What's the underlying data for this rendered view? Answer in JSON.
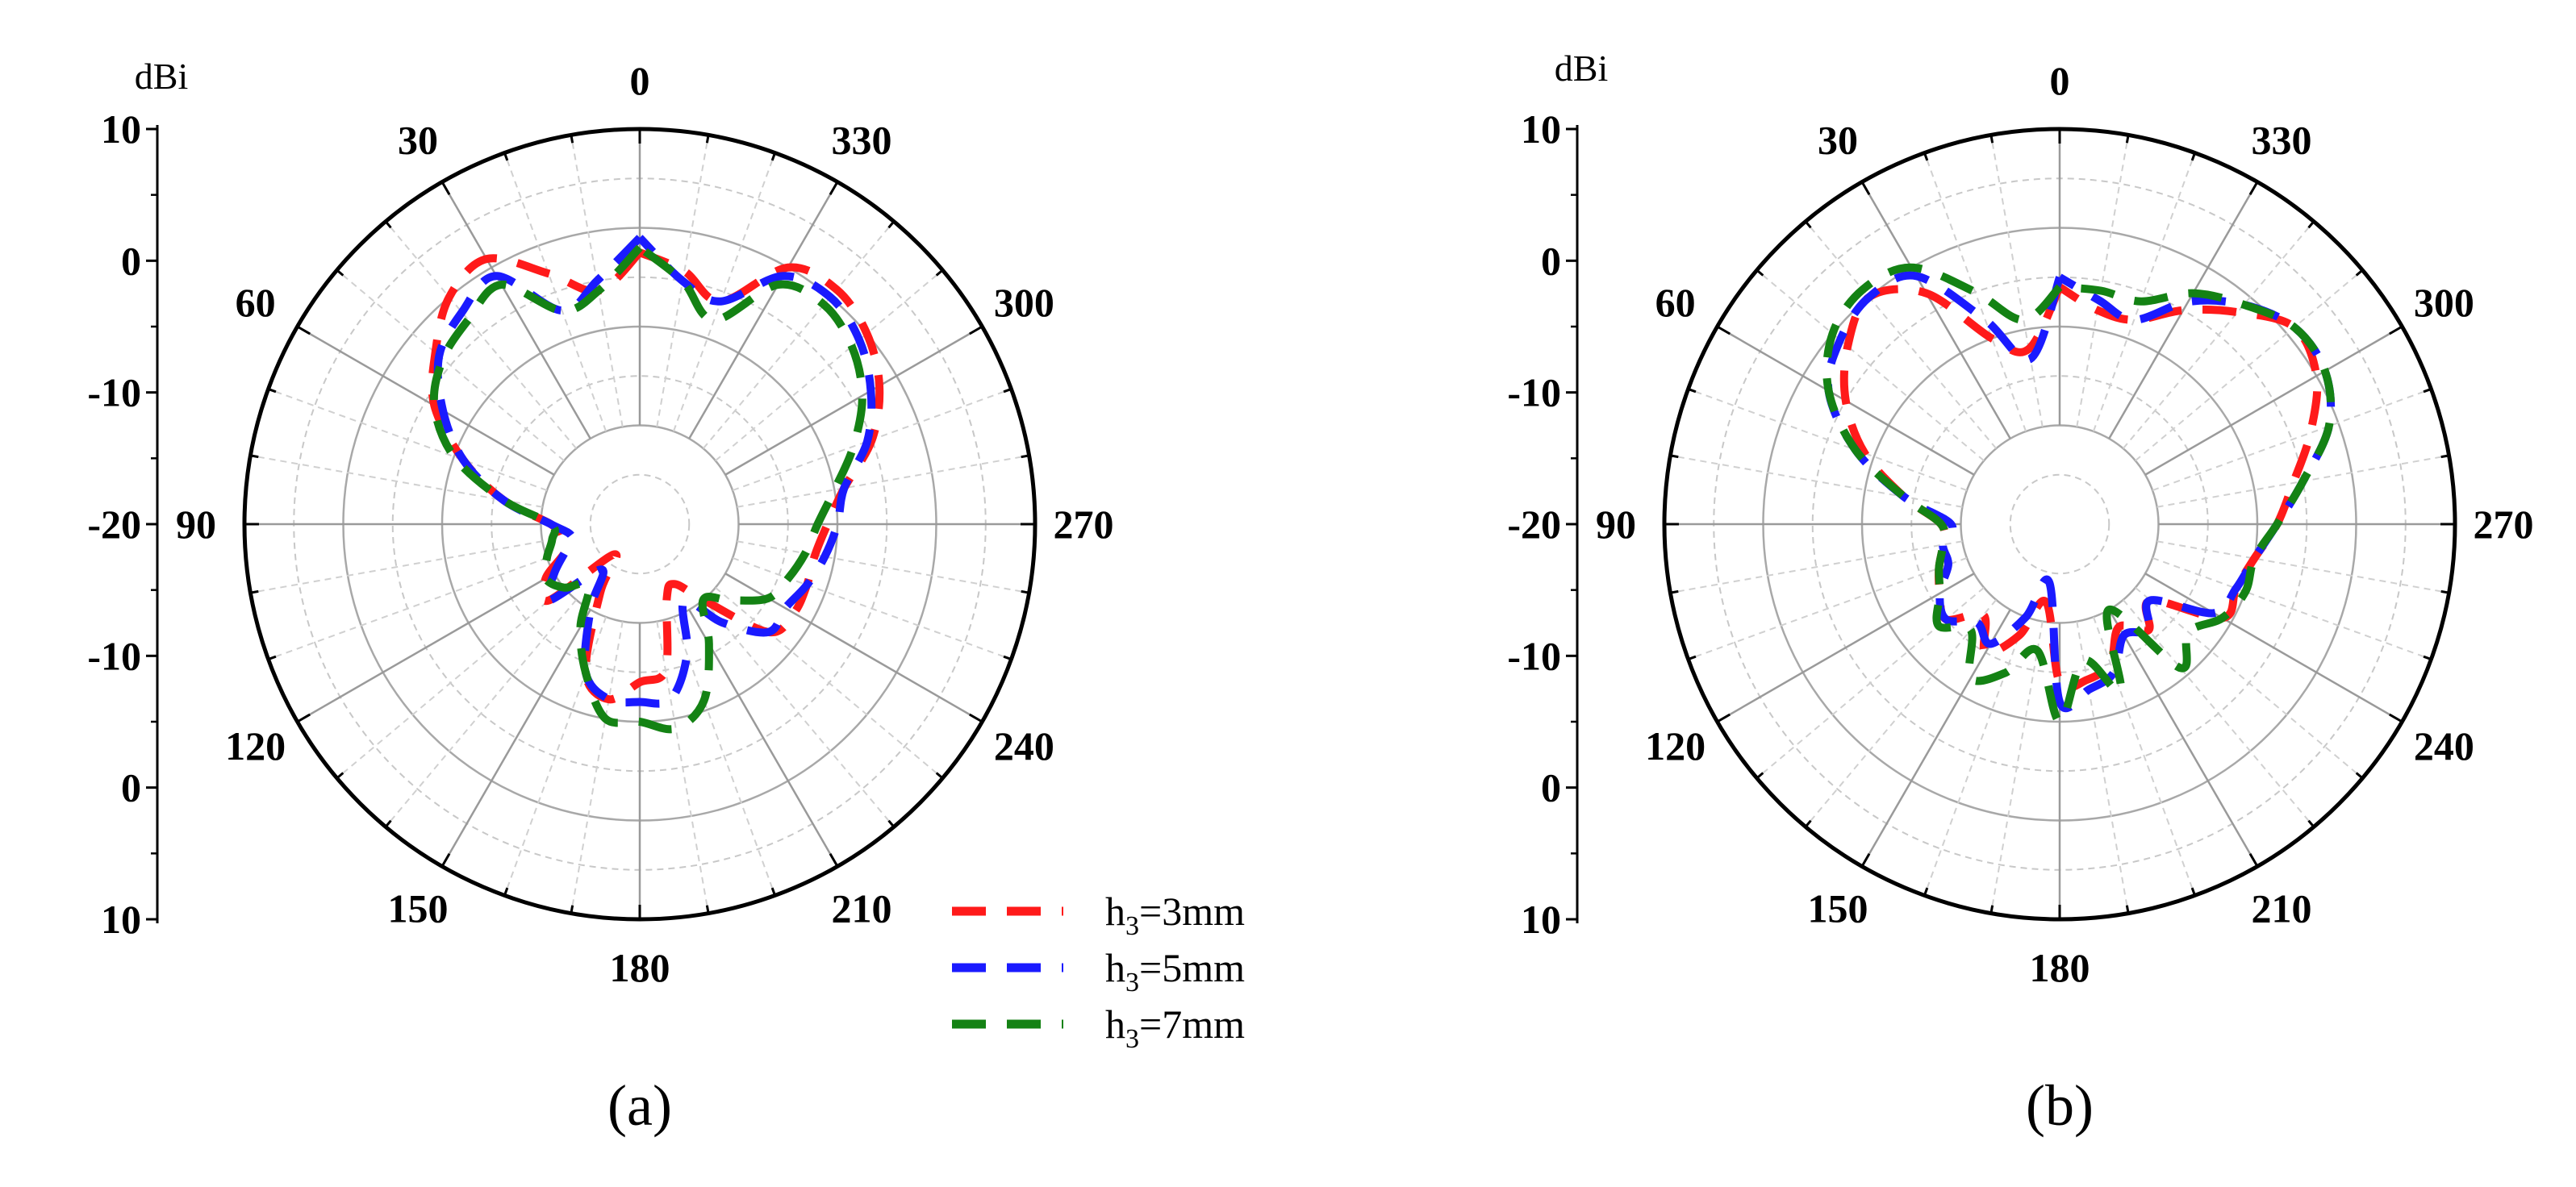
{
  "chart_data": [
    {
      "type": "polar",
      "panel_label": "(a)",
      "radial_unit": "dBi",
      "rlim": [
        -30,
        10
      ],
      "radial_scale_labels": [
        "10",
        "0",
        "-10",
        "-20",
        "-10",
        "0",
        "10"
      ],
      "angle_labels": [
        "0",
        "30",
        "60",
        "90",
        "120",
        "150",
        "180",
        "210",
        "240",
        "270",
        "300",
        "330"
      ],
      "angle_direction": "counterclockwise",
      "zero_location": "top",
      "grid": true,
      "legend": {
        "placement": "bottom-right",
        "entries": [
          {
            "prefix": "h",
            "sub": "3",
            "suffix": "=3mm",
            "color": "#ff1a1a"
          },
          {
            "prefix": "h",
            "sub": "3",
            "suffix": "=5mm",
            "color": "#1a1aff"
          },
          {
            "prefix": "h",
            "sub": "3",
            "suffix": "=7mm",
            "color": "#148214"
          }
        ]
      },
      "series": [
        {
          "name": "h3=3mm",
          "color": "#ff1a1a",
          "theta": [
            0,
            10,
            20,
            30,
            40,
            50,
            60,
            70,
            80,
            90,
            100,
            110,
            120,
            130,
            140,
            150,
            160,
            170,
            180,
            190,
            200,
            210,
            220,
            230,
            240,
            250,
            260,
            270,
            280,
            290,
            300,
            310,
            320,
            330,
            340,
            350
          ],
          "r": [
            -2.5,
            -6,
            -3,
            1,
            0,
            -3,
            -6,
            -11,
            -16,
            -21,
            -22,
            -22,
            -19,
            -18,
            -26,
            -22,
            -14,
            -12,
            -14,
            -15,
            -22,
            -23,
            -20,
            -13,
            -12,
            -12,
            -12,
            -11,
            -9,
            -5,
            -2,
            0,
            1,
            0,
            -6,
            -4
          ]
        },
        {
          "name": "h3=5mm",
          "color": "#1a1aff",
          "theta": [
            0,
            10,
            20,
            30,
            40,
            50,
            60,
            70,
            80,
            90,
            100,
            110,
            120,
            130,
            140,
            150,
            160,
            170,
            180,
            190,
            200,
            210,
            220,
            230,
            240,
            250,
            260,
            270,
            280,
            290,
            300,
            310,
            320,
            330,
            340,
            350
          ],
          "r": [
            -1,
            -5,
            -7,
            -1,
            -2,
            -3.5,
            -7,
            -11,
            -16,
            -21,
            -23,
            -22,
            -20,
            -18,
            -24,
            -20,
            -14,
            -12,
            -12,
            -12,
            -16,
            -21,
            -17,
            -13,
            -13,
            -12,
            -11,
            -10,
            -9,
            -5.5,
            -3,
            -1,
            0,
            -1,
            -6,
            -5
          ]
        },
        {
          "name": "h3=7mm",
          "color": "#148214",
          "theta": [
            0,
            10,
            20,
            30,
            40,
            50,
            60,
            70,
            80,
            90,
            100,
            110,
            120,
            130,
            140,
            150,
            160,
            170,
            180,
            190,
            200,
            210,
            220,
            230,
            240,
            250,
            260,
            270,
            280,
            290,
            300,
            310,
            320,
            330,
            340,
            350
          ],
          "r": [
            -2,
            -6,
            -7,
            -2,
            -3,
            -4,
            -6,
            -10,
            -16,
            -21,
            -21,
            -20,
            -19,
            -20,
            -22,
            -18,
            -14,
            -10,
            -10,
            -9,
            -11,
            -16,
            -20,
            -18,
            -15,
            -14,
            -13,
            -12,
            -10,
            -7,
            -4,
            -2,
            -1,
            -2,
            -8,
            -5
          ]
        }
      ]
    },
    {
      "type": "polar",
      "panel_label": "(b)",
      "radial_unit": "dBi",
      "rlim": [
        -30,
        10
      ],
      "radial_scale_labels": [
        "10",
        "0",
        "-10",
        "-20",
        "-10",
        "0",
        "10"
      ],
      "angle_labels": [
        "0",
        "30",
        "60",
        "90",
        "120",
        "150",
        "180",
        "210",
        "240",
        "270",
        "300",
        "330"
      ],
      "angle_direction": "counterclockwise",
      "zero_location": "top",
      "grid": true,
      "series": [
        {
          "name": "h3=3mm",
          "color": "#ff1a1a",
          "theta": [
            0,
            10,
            20,
            30,
            40,
            50,
            60,
            70,
            80,
            90,
            100,
            110,
            120,
            130,
            140,
            150,
            160,
            170,
            180,
            190,
            200,
            210,
            220,
            230,
            240,
            250,
            260,
            270,
            280,
            290,
            300,
            310,
            320,
            330,
            340,
            350
          ],
          "r": [
            -6,
            -12,
            -10,
            -3,
            0,
            -2,
            -5,
            -9,
            -14,
            -18,
            -18,
            -17,
            -16,
            -15,
            -18,
            -15,
            -18,
            -22,
            -14,
            -14,
            -15,
            -18,
            -16,
            -18,
            -11,
            -11,
            -10,
            -8,
            -6,
            -3,
            0,
            1,
            -2,
            -5,
            -8,
            -8
          ]
        },
        {
          "name": "h3=5mm",
          "color": "#1a1aff",
          "theta": [
            0,
            10,
            20,
            30,
            40,
            50,
            60,
            70,
            80,
            90,
            100,
            110,
            120,
            130,
            140,
            150,
            160,
            170,
            180,
            190,
            200,
            210,
            220,
            230,
            240,
            250,
            260,
            270,
            280,
            290,
            300,
            310,
            320,
            330,
            340,
            350
          ],
          "r": [
            -5,
            -13,
            -8,
            -1,
            0,
            -1,
            -3,
            -8,
            -14,
            -19,
            -18,
            -18,
            -16,
            -15,
            -17,
            -16,
            -20,
            -24,
            -12,
            -13,
            -14,
            -17,
            -16,
            -18,
            -12,
            -11,
            -10,
            -8,
            -5,
            -1,
            1,
            1,
            -1,
            -4,
            -8,
            -7
          ]
        },
        {
          "name": "h3=7mm",
          "color": "#148214",
          "theta": [
            0,
            10,
            20,
            30,
            40,
            50,
            60,
            70,
            80,
            90,
            100,
            110,
            120,
            130,
            140,
            150,
            160,
            170,
            180,
            190,
            200,
            210,
            220,
            230,
            240,
            250,
            260,
            270,
            280,
            290,
            300,
            310,
            320,
            330,
            340,
            350
          ],
          "r": [
            -6,
            -9,
            -5,
            0,
            1,
            0,
            -3,
            -8,
            -14,
            -18,
            -18,
            -17,
            -16,
            -14,
            -16,
            -12,
            -14,
            -17,
            -10,
            -16,
            -12,
            -20,
            -11,
            -13,
            -11,
            -10,
            -10,
            -8,
            -5,
            -1,
            1,
            1,
            -1,
            -3,
            -6,
            -6
          ]
        }
      ]
    }
  ]
}
